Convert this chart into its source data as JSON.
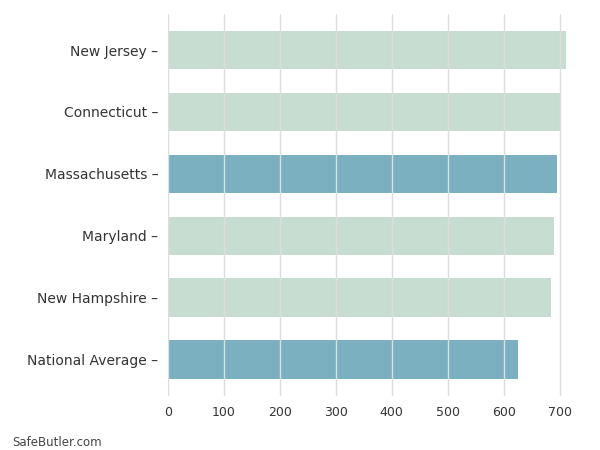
{
  "categories": [
    "New Jersey",
    "Connecticut",
    "Massachusetts",
    "Maryland",
    "New Hampshire",
    "National Average"
  ],
  "values": [
    712,
    702,
    696,
    690,
    685,
    625
  ],
  "bar_colors": [
    "#c8ddd1",
    "#c8ddd1",
    "#7ab0bf",
    "#c8ddd1",
    "#c8ddd1",
    "#7ab0bf"
  ],
  "background_color": "#ffffff",
  "grid_color": "#dddddd",
  "plot_bg_color": "#ffffff",
  "xlim": [
    0,
    740
  ],
  "xticks": [
    0,
    100,
    200,
    300,
    400,
    500,
    600,
    700
  ],
  "footer_text": "SafeButler.com",
  "bar_height": 0.62
}
